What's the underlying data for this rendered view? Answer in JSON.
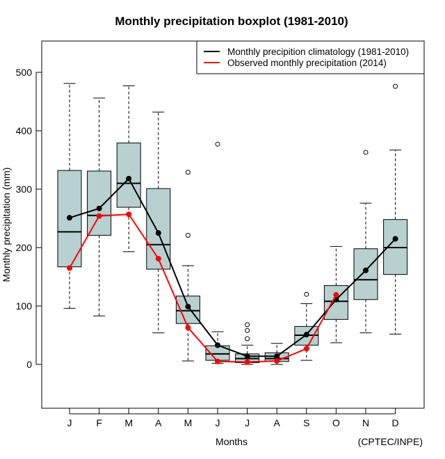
{
  "chart_data": {
    "type": "boxplot",
    "title": "Monthly precipitation boxplot (1981-2010)",
    "xlabel": "Months",
    "ylabel": "Monthly precipitation (mm)",
    "caption": "(CPTEC/INPE)",
    "ylim": [
      -75,
      553
    ],
    "yticks": [
      0,
      100,
      200,
      300,
      400,
      500
    ],
    "categories": [
      "J",
      "F",
      "M",
      "A",
      "M",
      "J",
      "J",
      "A",
      "S",
      "O",
      "N",
      "D"
    ],
    "box_fill": "#b7d0d0",
    "boxes": [
      {
        "whisker_low": 96,
        "q1": 167,
        "median": 227,
        "q3": 332,
        "whisker_high": 481,
        "outliers": []
      },
      {
        "whisker_low": 83,
        "q1": 221,
        "median": 255,
        "q3": 331,
        "whisker_high": 456,
        "outliers": []
      },
      {
        "whisker_low": 193,
        "q1": 269,
        "median": 310,
        "q3": 379,
        "whisker_high": 477,
        "outliers": []
      },
      {
        "whisker_low": 54,
        "q1": 163,
        "median": 205,
        "q3": 301,
        "whisker_high": 432,
        "outliers": []
      },
      {
        "whisker_low": 6,
        "q1": 70,
        "median": 92,
        "q3": 117,
        "whisker_high": 169,
        "outliers": [
          221,
          329
        ]
      },
      {
        "whisker_low": 2,
        "q1": 7,
        "median": 18,
        "q3": 32,
        "whisker_high": 56,
        "outliers": [
          377
        ]
      },
      {
        "whisker_low": 0,
        "q1": 3,
        "median": 10,
        "q3": 18,
        "whisker_high": 33,
        "outliers": [
          44,
          58,
          68
        ]
      },
      {
        "whisker_low": 0,
        "q1": 5,
        "median": 10,
        "q3": 20,
        "whisker_high": 36,
        "outliers": []
      },
      {
        "whisker_low": 7,
        "q1": 33,
        "median": 50,
        "q3": 65,
        "whisker_high": 104,
        "outliers": [
          120
        ]
      },
      {
        "whisker_low": 37,
        "q1": 77,
        "median": 108,
        "q3": 135,
        "whisker_high": 202,
        "outliers": []
      },
      {
        "whisker_low": 54,
        "q1": 111,
        "median": 145,
        "q3": 198,
        "whisker_high": 276,
        "outliers": [
          363
        ]
      },
      {
        "whisker_low": 52,
        "q1": 154,
        "median": 200,
        "q3": 248,
        "whisker_high": 367,
        "outliers": [
          476
        ]
      }
    ],
    "series": [
      {
        "name": "Monthly precipition climatology (1981-2010)",
        "color": "#000000",
        "values": [
          251,
          267,
          318,
          225,
          99,
          33,
          14,
          14,
          51,
          111,
          161,
          215
        ]
      },
      {
        "name": "Observed monthly precipitation (2014)",
        "color": "#ff0000",
        "values": [
          165,
          254,
          257,
          181,
          63,
          5,
          4,
          6,
          27,
          119,
          null,
          null
        ]
      }
    ],
    "legend_position": "top-right",
    "grid": false
  }
}
